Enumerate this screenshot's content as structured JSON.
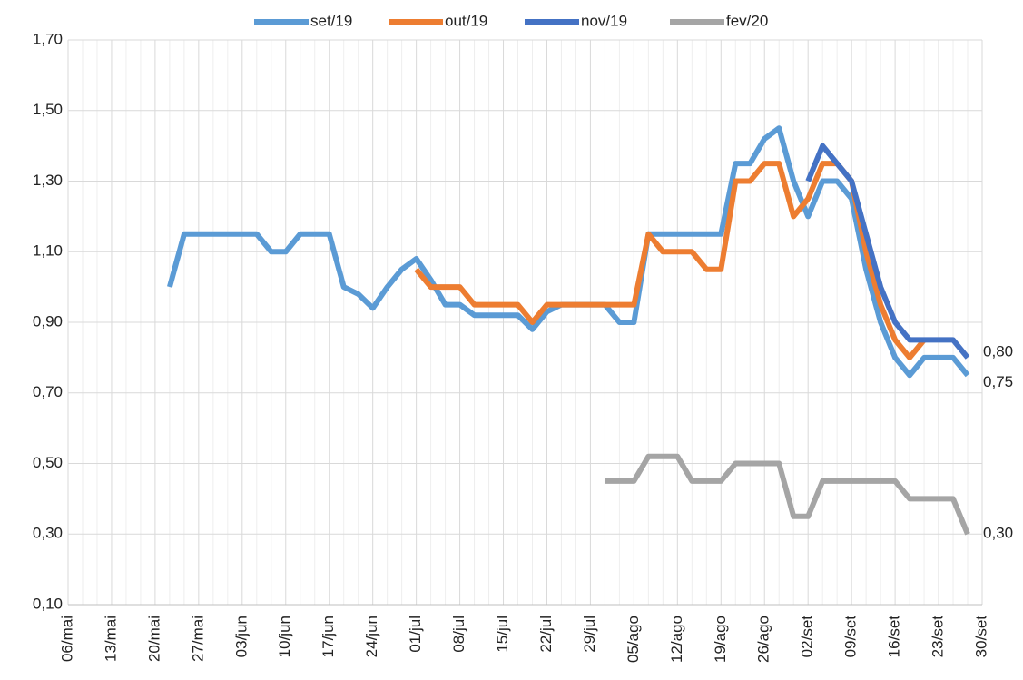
{
  "chart_data": {
    "type": "line",
    "categories": [
      "06/mai",
      null,
      null,
      "13/mai",
      null,
      null,
      "20/mai",
      null,
      null,
      "27/mai",
      null,
      null,
      "03/jun",
      null,
      null,
      "10/jun",
      null,
      null,
      "17/jun",
      null,
      null,
      "24/jun",
      null,
      null,
      "01/jul",
      null,
      null,
      "08/jul",
      null,
      null,
      "15/jul",
      null,
      null,
      "22/jul",
      null,
      null,
      "29/jul",
      null,
      null,
      "05/ago",
      null,
      null,
      "12/ago",
      null,
      null,
      "19/ago",
      null,
      null,
      "26/ago",
      null,
      null,
      "02/set",
      null,
      null,
      "09/set",
      null,
      null,
      "16/set",
      null,
      null,
      "23/set",
      null,
      null,
      "30/set"
    ],
    "series": [
      {
        "name": "set/19",
        "color": "#5b9bd5",
        "values": [
          null,
          null,
          null,
          null,
          null,
          null,
          null,
          1.0,
          1.15,
          1.15,
          1.15,
          1.15,
          1.15,
          1.15,
          1.1,
          1.1,
          1.15,
          1.15,
          1.15,
          1.0,
          0.98,
          0.94,
          1.0,
          1.05,
          1.08,
          1.02,
          0.95,
          0.95,
          0.92,
          0.92,
          0.92,
          0.92,
          0.88,
          0.93,
          0.95,
          0.95,
          0.95,
          0.95,
          0.9,
          0.9,
          1.15,
          1.15,
          1.15,
          1.15,
          1.15,
          1.15,
          1.35,
          1.35,
          1.42,
          1.45,
          1.3,
          1.2,
          1.3,
          1.3,
          1.25,
          1.05,
          0.9,
          0.8,
          0.75,
          0.8,
          0.8,
          0.8,
          0.75,
          null
        ],
        "value_labels": [
          null,
          null,
          null,
          null,
          null,
          null,
          null,
          null,
          null,
          null,
          null,
          null,
          null,
          null,
          null,
          null,
          null,
          null,
          null,
          null,
          null,
          null,
          null,
          null,
          null,
          null,
          null,
          null,
          null,
          null,
          null,
          null,
          null,
          null,
          null,
          null,
          null,
          null,
          null,
          null,
          null,
          null,
          null,
          null,
          null,
          null,
          null,
          null,
          null,
          null,
          null,
          null,
          null,
          null,
          null,
          null,
          null,
          null,
          null,
          null,
          null,
          null,
          "0,75",
          null
        ]
      },
      {
        "name": "out/19",
        "color": "#ed7d31",
        "values": [
          null,
          null,
          null,
          null,
          null,
          null,
          null,
          null,
          null,
          null,
          null,
          null,
          null,
          null,
          null,
          null,
          null,
          null,
          null,
          null,
          null,
          null,
          null,
          null,
          1.05,
          1.0,
          1.0,
          1.0,
          0.95,
          0.95,
          0.95,
          0.95,
          0.9,
          0.95,
          0.95,
          0.95,
          0.95,
          0.95,
          0.95,
          0.95,
          1.15,
          1.1,
          1.1,
          1.1,
          1.05,
          1.05,
          1.3,
          1.3,
          1.35,
          1.35,
          1.2,
          1.25,
          1.35,
          1.35,
          1.3,
          1.1,
          0.95,
          0.85,
          0.8,
          0.85,
          null,
          null,
          null,
          null
        ]
      },
      {
        "name": "nov/19",
        "color": "#4472c4",
        "values": [
          null,
          null,
          null,
          null,
          null,
          null,
          null,
          null,
          null,
          null,
          null,
          null,
          null,
          null,
          null,
          null,
          null,
          null,
          null,
          null,
          null,
          null,
          null,
          null,
          null,
          null,
          null,
          null,
          null,
          null,
          null,
          null,
          null,
          null,
          null,
          null,
          null,
          null,
          null,
          null,
          null,
          null,
          null,
          null,
          null,
          null,
          null,
          null,
          null,
          null,
          null,
          1.3,
          1.4,
          1.35,
          1.3,
          1.15,
          1.0,
          0.9,
          0.85,
          0.85,
          0.85,
          0.85,
          0.8,
          null
        ],
        "value_labels": [
          null,
          null,
          null,
          null,
          null,
          null,
          null,
          null,
          null,
          null,
          null,
          null,
          null,
          null,
          null,
          null,
          null,
          null,
          null,
          null,
          null,
          null,
          null,
          null,
          null,
          null,
          null,
          null,
          null,
          null,
          null,
          null,
          null,
          null,
          null,
          null,
          null,
          null,
          null,
          null,
          null,
          null,
          null,
          null,
          null,
          null,
          null,
          null,
          null,
          null,
          null,
          null,
          null,
          null,
          null,
          null,
          null,
          null,
          null,
          null,
          null,
          null,
          "0,80",
          null
        ]
      },
      {
        "name": "fev/20",
        "color": "#a5a5a5",
        "values": [
          null,
          null,
          null,
          null,
          null,
          null,
          null,
          null,
          null,
          null,
          null,
          null,
          null,
          null,
          null,
          null,
          null,
          null,
          null,
          null,
          null,
          null,
          null,
          null,
          null,
          null,
          null,
          null,
          null,
          null,
          null,
          null,
          null,
          null,
          null,
          null,
          null,
          0.45,
          0.45,
          0.45,
          0.52,
          0.52,
          0.52,
          0.45,
          0.45,
          0.45,
          0.5,
          0.5,
          0.5,
          0.5,
          0.35,
          0.35,
          0.45,
          0.45,
          0.45,
          0.45,
          0.45,
          0.45,
          0.4,
          0.4,
          0.4,
          0.4,
          0.3,
          null
        ],
        "value_labels": [
          null,
          null,
          null,
          null,
          null,
          null,
          null,
          null,
          null,
          null,
          null,
          null,
          null,
          null,
          null,
          null,
          null,
          null,
          null,
          null,
          null,
          null,
          null,
          null,
          null,
          null,
          null,
          null,
          null,
          null,
          null,
          null,
          null,
          null,
          null,
          null,
          null,
          null,
          null,
          null,
          null,
          null,
          null,
          null,
          null,
          null,
          null,
          null,
          null,
          null,
          null,
          null,
          null,
          null,
          null,
          null,
          null,
          null,
          null,
          null,
          null,
          null,
          "0,30",
          null
        ]
      }
    ],
    "ylim": [
      0.1,
      1.7
    ],
    "yticks": [
      {
        "value": 0.1,
        "label": "0,10"
      },
      {
        "value": 0.3,
        "label": "0,30"
      },
      {
        "value": 0.5,
        "label": "0,50"
      },
      {
        "value": 0.7,
        "label": "0,70"
      },
      {
        "value": 0.9,
        "label": "0,90"
      },
      {
        "value": 1.1,
        "label": "1,10"
      },
      {
        "value": 1.3,
        "label": "1,30"
      },
      {
        "value": 1.5,
        "label": "1,50"
      },
      {
        "value": 1.7,
        "label": "1,70"
      }
    ],
    "grid": true,
    "legend": "top"
  }
}
